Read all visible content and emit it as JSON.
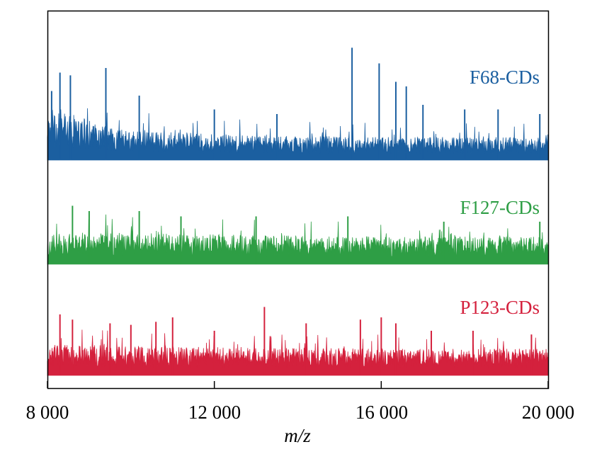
{
  "chart_data": {
    "type": "line",
    "xlabel": "m/z",
    "ylabel": "",
    "xlim": [
      8000,
      20000
    ],
    "xticks": [
      8000,
      12000,
      16000,
      20000
    ],
    "xtick_labels": [
      "8 000",
      "12 000",
      "16 000",
      "20 000"
    ],
    "grid": false,
    "legend": "inline-right",
    "y_axis_shown": false,
    "series": [
      {
        "name": "F68-CDs",
        "color": "#1b5fa0",
        "noise_seed": 68,
        "envelope": [
          [
            8000,
            0.55
          ],
          [
            8600,
            0.5
          ],
          [
            9500,
            0.35
          ],
          [
            12000,
            0.28
          ],
          [
            16000,
            0.25
          ],
          [
            20000,
            0.25
          ]
        ],
        "peaks": [
          [
            8100,
            0.75
          ],
          [
            8300,
            0.95
          ],
          [
            8550,
            0.92
          ],
          [
            9400,
            1.0
          ],
          [
            10200,
            0.7
          ],
          [
            12000,
            0.55
          ],
          [
            13500,
            0.5
          ],
          [
            15300,
            1.22
          ],
          [
            15950,
            1.05
          ],
          [
            16350,
            0.85
          ],
          [
            16600,
            0.8
          ],
          [
            17000,
            0.6
          ],
          [
            18000,
            0.55
          ],
          [
            18800,
            0.55
          ],
          [
            19800,
            0.5
          ]
        ]
      },
      {
        "name": "F127-CDs",
        "color": "#2e9e45",
        "noise_seed": 127,
        "envelope": [
          [
            8000,
            0.28
          ],
          [
            9000,
            0.3
          ],
          [
            12000,
            0.28
          ],
          [
            16000,
            0.26
          ],
          [
            20000,
            0.26
          ]
        ],
        "peaks": [
          [
            8600,
            0.55
          ],
          [
            9000,
            0.5
          ],
          [
            10200,
            0.5
          ],
          [
            11200,
            0.45
          ],
          [
            13000,
            0.45
          ],
          [
            15200,
            0.45
          ],
          [
            17500,
            0.4
          ],
          [
            19800,
            0.4
          ]
        ]
      },
      {
        "name": "P123-CDs",
        "color": "#d4213d",
        "noise_seed": 123,
        "envelope": [
          [
            8000,
            0.42
          ],
          [
            12000,
            0.38
          ],
          [
            16000,
            0.36
          ],
          [
            20000,
            0.36
          ]
        ],
        "peaks": [
          [
            8300,
            0.82
          ],
          [
            8600,
            0.75
          ],
          [
            9500,
            0.7
          ],
          [
            10000,
            0.68
          ],
          [
            10600,
            0.72
          ],
          [
            11000,
            0.78
          ],
          [
            12000,
            0.6
          ],
          [
            13200,
            0.92
          ],
          [
            14200,
            0.7
          ],
          [
            15500,
            0.75
          ],
          [
            16000,
            0.78
          ],
          [
            16350,
            0.7
          ],
          [
            17200,
            0.6
          ],
          [
            18200,
            0.6
          ],
          [
            19600,
            0.55
          ]
        ]
      }
    ]
  }
}
